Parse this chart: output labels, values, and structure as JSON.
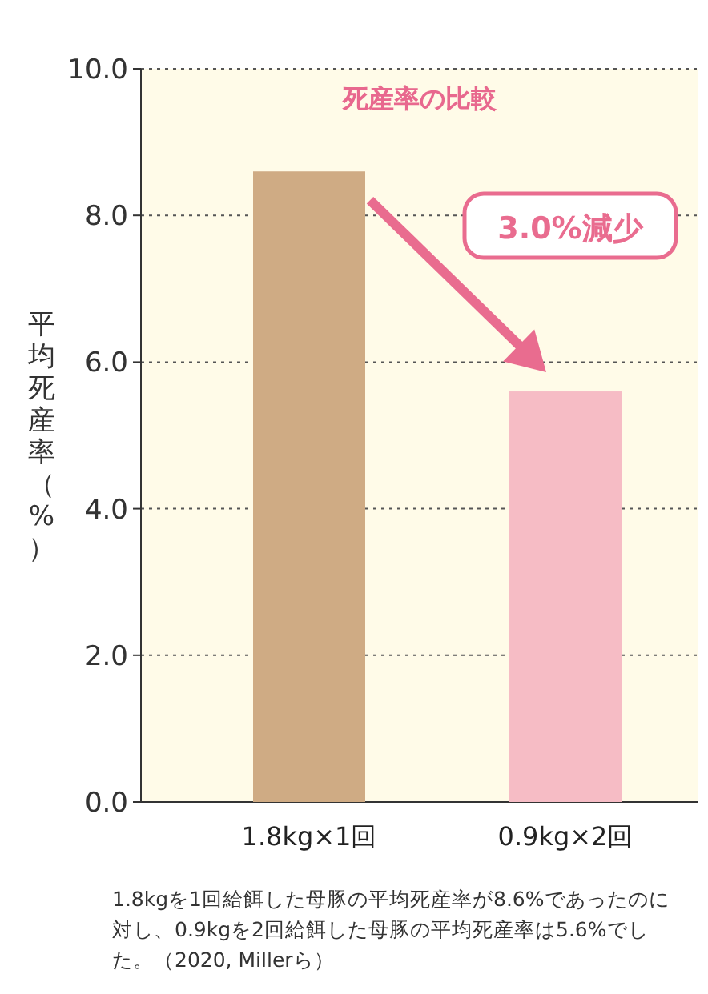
{
  "chart_data": {
    "type": "bar",
    "title": "死産率の比較",
    "ylabel": "平均死産率（%）",
    "categories": [
      "1.8kg×1回",
      "0.9kg×2回"
    ],
    "values": [
      8.6,
      5.6
    ],
    "colors": [
      "#cfab84",
      "#f6bcc5"
    ],
    "ylim": [
      0,
      10
    ],
    "yticks": [
      {
        "value": 0,
        "label": "0.0"
      },
      {
        "value": 2,
        "label": "2.0"
      },
      {
        "value": 4,
        "label": "4.0"
      },
      {
        "value": 6,
        "label": "6.0"
      },
      {
        "value": 8,
        "label": "8.0"
      },
      {
        "value": 10,
        "label": "10.0"
      }
    ],
    "grid": "y",
    "annotations": [
      "3.0%減少",
      "1.8kgを1回給餌した母豚の平均死産率が8.6%であったのに対し、0.9kgを2回給餌した母豚の平均死産率は5.6%でした。（2020, Millerら）"
    ]
  }
}
